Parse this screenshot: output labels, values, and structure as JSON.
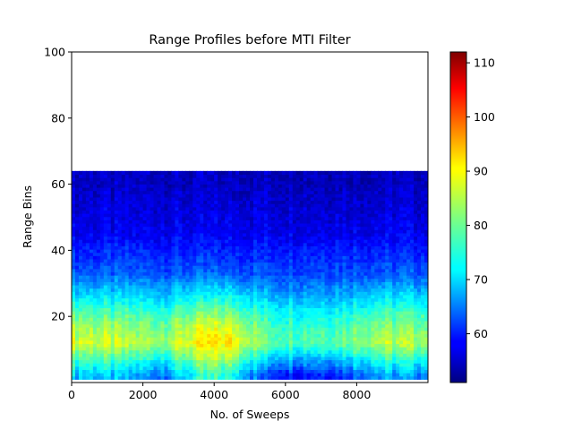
{
  "chart_data": {
    "type": "heatmap",
    "title": "Range Profiles before MTI Filter",
    "xlabel": "No. of Sweeps",
    "ylabel": "Range Bins",
    "xlim": [
      0,
      10000
    ],
    "ylim": [
      0,
      100
    ],
    "x_ticks": [
      0,
      2000,
      4000,
      6000,
      8000
    ],
    "x_tick_labels": [
      "0",
      "2000",
      "4000",
      "6000",
      "8000"
    ],
    "y_ticks": [
      20,
      40,
      60,
      80,
      100
    ],
    "y_tick_labels": [
      "20",
      "40",
      "60",
      "80",
      "100"
    ],
    "data_extent": {
      "x": [
        0,
        10000
      ],
      "y": [
        1,
        64
      ]
    },
    "colormap": "jet",
    "colorbar": {
      "range": [
        51,
        112
      ],
      "ticks": [
        60,
        70,
        80,
        90,
        100,
        110
      ],
      "tick_labels": [
        "60",
        "70",
        "80",
        "90",
        "100",
        "110"
      ]
    },
    "band_profile": [
      {
        "range_bin": 2,
        "value": 68
      },
      {
        "range_bin": 8,
        "value": 78
      },
      {
        "range_bin": 12,
        "value": 85
      },
      {
        "range_bin": 17,
        "value": 82
      },
      {
        "range_bin": 21,
        "value": 78
      },
      {
        "range_bin": 26,
        "value": 72
      },
      {
        "range_bin": 33,
        "value": 64
      },
      {
        "range_bin": 45,
        "value": 58
      },
      {
        "range_bin": 60,
        "value": 55
      }
    ],
    "sweep_profile": [
      {
        "sweep": 500,
        "value": 88
      },
      {
        "sweep": 1500,
        "value": 86
      },
      {
        "sweep": 2500,
        "value": 84
      },
      {
        "sweep": 3500,
        "value": 91
      },
      {
        "sweep": 4000,
        "value": 93
      },
      {
        "sweep": 4500,
        "value": 92
      },
      {
        "sweep": 5500,
        "value": 80
      },
      {
        "sweep": 6500,
        "value": 79
      },
      {
        "sweep": 7500,
        "value": 80
      },
      {
        "sweep": 8500,
        "value": 86
      },
      {
        "sweep": 9500,
        "value": 85
      }
    ],
    "grid": false
  }
}
